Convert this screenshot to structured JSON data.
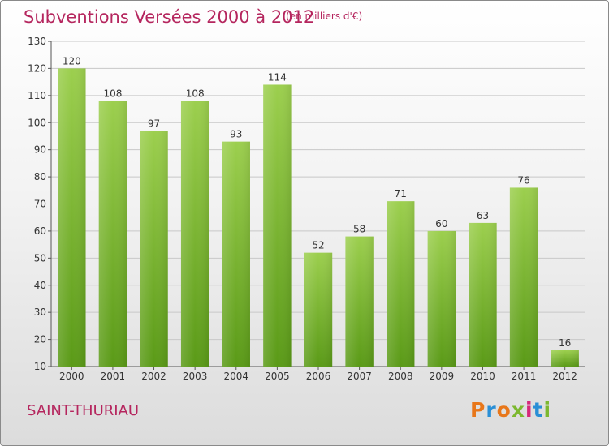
{
  "header": {
    "title": "Subventions Versées 2000 à 2012",
    "unit_note": "(en milliers d'€)"
  },
  "footer": {
    "commune": "SAINT-THURIAU",
    "logo_text": "Proxiti"
  },
  "colors": {
    "title": "#b5265e",
    "bar_top": "#9ccf4e",
    "bar_bottom": "#5a9a17",
    "grid": "#c8c8c8",
    "axis": "#555555",
    "logo_letters": [
      "#e8771a",
      "#2a8fd6",
      "#e8771a",
      "#7cb82f",
      "#d6297a",
      "#2a8fd6",
      "#7cb82f"
    ]
  },
  "chart_data": {
    "type": "bar",
    "title": "Subventions Versées 2000 à 2012",
    "subtitle": "(en milliers d'€)",
    "categories": [
      "2000",
      "2001",
      "2002",
      "2003",
      "2004",
      "2005",
      "2006",
      "2007",
      "2008",
      "2009",
      "2010",
      "2011",
      "2012"
    ],
    "values": [
      120,
      108,
      97,
      108,
      93,
      114,
      52,
      58,
      71,
      60,
      63,
      76,
      16
    ],
    "ylim": [
      10,
      130
    ],
    "yticks": [
      10,
      20,
      30,
      40,
      50,
      60,
      70,
      80,
      90,
      100,
      110,
      120,
      130
    ],
    "grid": true,
    "data_labels": true,
    "xlabel": "",
    "ylabel": ""
  }
}
